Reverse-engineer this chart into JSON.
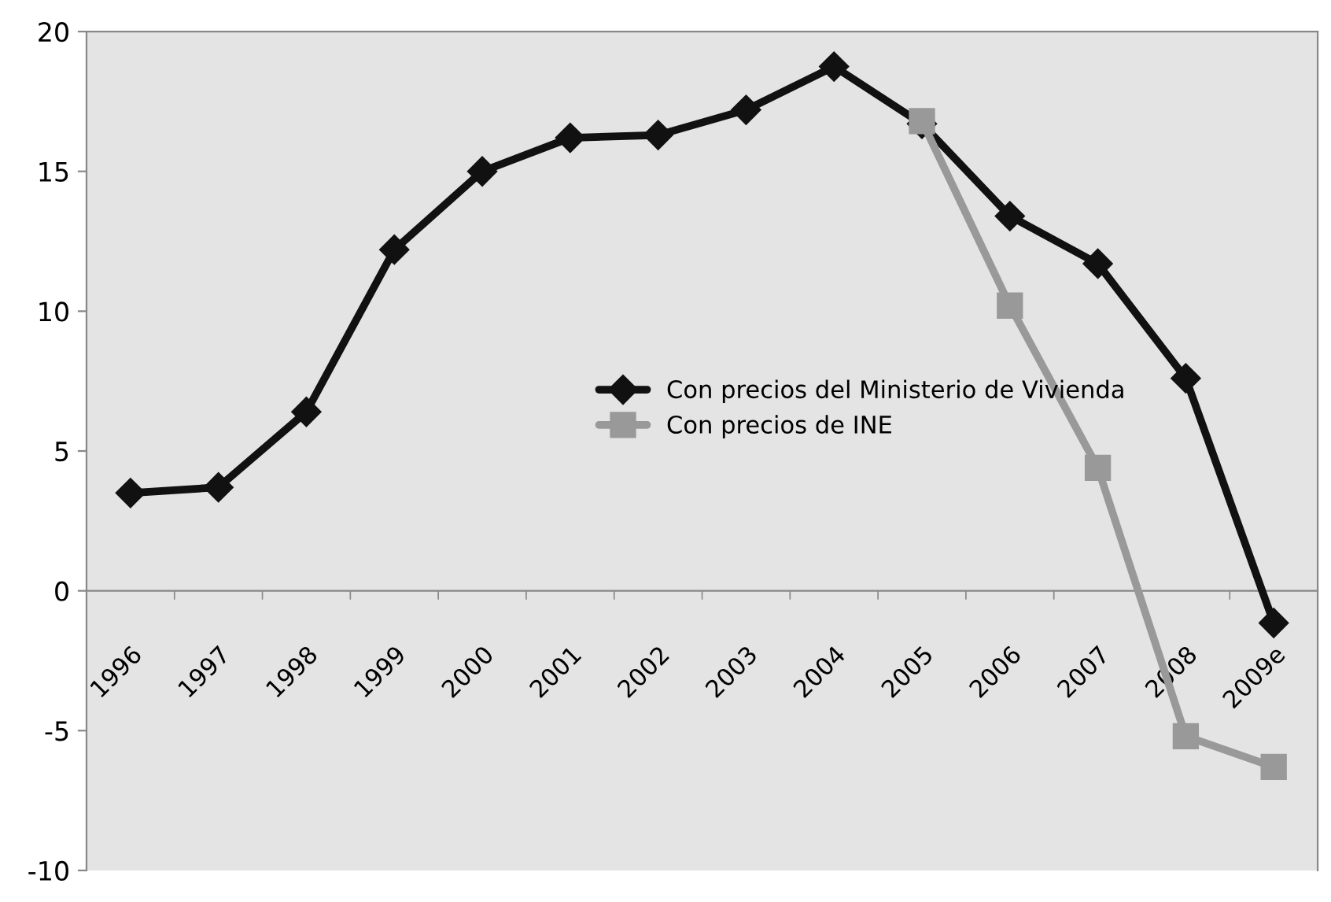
{
  "chart_data": {
    "type": "line",
    "categories": [
      "1996",
      "1997",
      "1998",
      "1999",
      "2000",
      "2001",
      "2002",
      "2003",
      "2004",
      "2005",
      "2006",
      "2007",
      "2008",
      "2009e"
    ],
    "series": [
      {
        "name": "Con precios del Ministerio de Vivienda",
        "color": "#111111",
        "marker": "diamond",
        "values": [
          3.5,
          3.7,
          6.4,
          12.2,
          15.0,
          16.2,
          16.3,
          17.2,
          18.75,
          16.7,
          13.4,
          11.7,
          7.6,
          -1.15
        ]
      },
      {
        "name": "Con precios de INE",
        "color": "#999999",
        "marker": "square",
        "values": [
          null,
          null,
          null,
          null,
          null,
          null,
          null,
          null,
          null,
          16.8,
          10.2,
          4.4,
          -5.2,
          -6.3
        ]
      }
    ],
    "ylim": [
      -10,
      20
    ],
    "yticks": [
      -10,
      -5,
      0,
      5,
      10,
      15,
      20
    ],
    "grid": false,
    "legend": "center",
    "line_style": "solid"
  }
}
